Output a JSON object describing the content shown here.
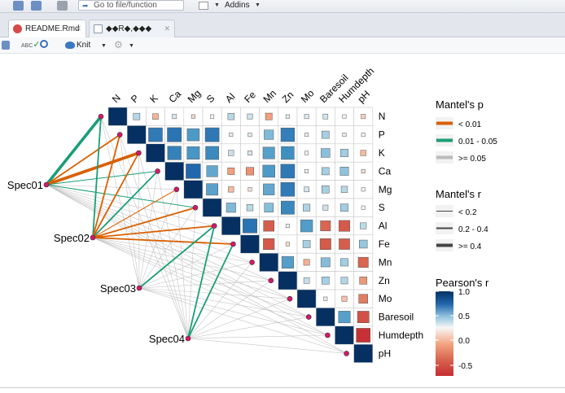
{
  "toolbar": {
    "goto_placeholder": "Go to file/function",
    "addins_label": "Addins",
    "icons": [
      "save-icon",
      "save-all-icon",
      "print-icon",
      "goto-arrow-icon",
      "grid-icon"
    ]
  },
  "tabs": [
    {
      "label": "README.Rmd",
      "active": true,
      "icon": "no-entry-icon"
    },
    {
      "label": "◆◆R◆,◆◆◆",
      "active": false,
      "icon": "document-icon"
    }
  ],
  "editor_toolbar": {
    "spell_label": "ABC",
    "knit_label": "Knit",
    "icons": [
      "save-icon",
      "spellcheck-icon",
      "search-icon",
      "knit-icon",
      "gear-icon"
    ]
  },
  "chart_data": {
    "type": "heatmap",
    "variables": [
      "N",
      "P",
      "K",
      "Ca",
      "Mg",
      "S",
      "Al",
      "Fe",
      "Mn",
      "Zn",
      "Mo",
      "Baresoil",
      "Humdepth",
      "pH"
    ],
    "pearson_r": [
      [
        1.0,
        0.16,
        -0.12,
        0.07,
        -0.05,
        0.0,
        0.15,
        0.1,
        -0.17,
        0.05,
        0.07,
        0.09,
        0.0,
        -0.07
      ],
      [
        0,
        1.0,
        0.71,
        0.74,
        0.55,
        0.72,
        0.04,
        0.05,
        0.33,
        0.69,
        0.03,
        0.2,
        0.04,
        0.0
      ],
      [
        0,
        0,
        1.0,
        0.68,
        0.58,
        0.64,
        0.11,
        0.07,
        0.51,
        0.62,
        0.02,
        0.29,
        0.21,
        -0.11
      ],
      [
        0,
        0,
        0,
        1.0,
        0.79,
        0.46,
        -0.17,
        -0.22,
        0.55,
        0.72,
        0.03,
        0.2,
        0.26,
        -0.05
      ],
      [
        0,
        0,
        0,
        0,
        1.0,
        0.5,
        -0.11,
        -0.04,
        0.46,
        0.71,
        0.09,
        0.2,
        0.15,
        0.0
      ],
      [
        0,
        0,
        0,
        0,
        0,
        1.0,
        0.33,
        0.15,
        0.3,
        0.65,
        0.18,
        0.1,
        0.21,
        0.0
      ],
      [
        0,
        0,
        0,
        0,
        0,
        0,
        1.0,
        0.74,
        -0.42,
        0.03,
        0.54,
        -0.38,
        -0.44,
        0.14
      ],
      [
        0,
        0,
        0,
        0,
        0,
        0,
        0,
        1.0,
        -0.45,
        -0.05,
        0.2,
        -0.44,
        -0.42,
        0.24
      ],
      [
        0,
        0,
        0,
        0,
        0,
        0,
        0,
        0,
        1.0,
        0.52,
        -0.13,
        0.31,
        0.21,
        -0.38
      ],
      [
        0,
        0,
        0,
        0,
        0,
        0,
        0,
        0,
        0,
        1.0,
        0.12,
        0.2,
        0.17,
        -0.2
      ],
      [
        0,
        0,
        0,
        0,
        0,
        0,
        0,
        0,
        0,
        0,
        1.0,
        0.05,
        -0.1,
        -0.3
      ],
      [
        0,
        0,
        0,
        0,
        0,
        0,
        0,
        0,
        0,
        0,
        0,
        1.0,
        0.51,
        -0.5
      ],
      [
        0,
        0,
        0,
        0,
        0,
        0,
        0,
        0,
        0,
        0,
        0,
        0,
        1.0,
        -0.72
      ],
      [
        0,
        0,
        0,
        0,
        0,
        0,
        0,
        0,
        0,
        0,
        0,
        0,
        0,
        1.0
      ]
    ],
    "species": [
      "Spec01",
      "Spec02",
      "Spec03",
      "Spec04"
    ],
    "mantel_links": [
      {
        "spec": "Spec01",
        "var": "N",
        "p": "0.01 - 0.05",
        "r": ">= 0.4"
      },
      {
        "spec": "Spec01",
        "var": "P",
        "p": "< 0.01",
        "r": "0.2 - 0.4"
      },
      {
        "spec": "Spec01",
        "var": "K",
        "p": "< 0.01",
        "r": ">= 0.4"
      },
      {
        "spec": "Spec01",
        "var": "Ca",
        "p": "0.01 - 0.05",
        "r": "< 0.2"
      },
      {
        "spec": "Spec01",
        "var": "Mg",
        "p": ">= 0.05",
        "r": "< 0.2"
      },
      {
        "spec": "Spec01",
        "var": "S",
        "p": "0.01 - 0.05",
        "r": "< 0.2"
      },
      {
        "spec": "Spec01",
        "var": "Al",
        "p": ">= 0.05",
        "r": "< 0.2"
      },
      {
        "spec": "Spec01",
        "var": "Fe",
        "p": ">= 0.05",
        "r": "< 0.2"
      },
      {
        "spec": "Spec01",
        "var": "Mn",
        "p": ">= 0.05",
        "r": "< 0.2"
      },
      {
        "spec": "Spec01",
        "var": "Zn",
        "p": ">= 0.05",
        "r": "< 0.2"
      },
      {
        "spec": "Spec01",
        "var": "Mo",
        "p": ">= 0.05",
        "r": "< 0.2"
      },
      {
        "spec": "Spec01",
        "var": "Baresoil",
        "p": ">= 0.05",
        "r": "< 0.2"
      },
      {
        "spec": "Spec01",
        "var": "Humdepth",
        "p": ">= 0.05",
        "r": "< 0.2"
      },
      {
        "spec": "Spec01",
        "var": "pH",
        "p": ">= 0.05",
        "r": "< 0.2"
      },
      {
        "spec": "Spec02",
        "var": "N",
        "p": "0.01 - 0.05",
        "r": "0.2 - 0.4"
      },
      {
        "spec": "Spec02",
        "var": "P",
        "p": "< 0.01",
        "r": "0.2 - 0.4"
      },
      {
        "spec": "Spec02",
        "var": "K",
        "p": "< 0.01",
        "r": "0.2 - 0.4"
      },
      {
        "spec": "Spec02",
        "var": "Ca",
        "p": "0.01 - 0.05",
        "r": "0.2 - 0.4"
      },
      {
        "spec": "Spec02",
        "var": "Mg",
        "p": "< 0.01",
        "r": "< 0.2"
      },
      {
        "spec": "Spec02",
        "var": "S",
        "p": "< 0.01",
        "r": "0.2 - 0.4"
      },
      {
        "spec": "Spec02",
        "var": "Al",
        "p": "< 0.01",
        "r": "0.2 - 0.4"
      },
      {
        "spec": "Spec02",
        "var": "Fe",
        "p": "< 0.01",
        "r": "0.2 - 0.4"
      },
      {
        "spec": "Spec02",
        "var": "Mn",
        "p": ">= 0.05",
        "r": "< 0.2"
      },
      {
        "spec": "Spec02",
        "var": "Zn",
        "p": ">= 0.05",
        "r": "< 0.2"
      },
      {
        "spec": "Spec02",
        "var": "Mo",
        "p": ">= 0.05",
        "r": "< 0.2"
      },
      {
        "spec": "Spec02",
        "var": "Baresoil",
        "p": ">= 0.05",
        "r": "< 0.2"
      },
      {
        "spec": "Spec02",
        "var": "Humdepth",
        "p": ">= 0.05",
        "r": "< 0.2"
      },
      {
        "spec": "Spec02",
        "var": "pH",
        "p": ">= 0.05",
        "r": "< 0.2"
      },
      {
        "spec": "Spec03",
        "var": "N",
        "p": ">= 0.05",
        "r": "< 0.2"
      },
      {
        "spec": "Spec03",
        "var": "P",
        "p": ">= 0.05",
        "r": "< 0.2"
      },
      {
        "spec": "Spec03",
        "var": "K",
        "p": ">= 0.05",
        "r": "< 0.2"
      },
      {
        "spec": "Spec03",
        "var": "Ca",
        "p": ">= 0.05",
        "r": "< 0.2"
      },
      {
        "spec": "Spec03",
        "var": "Mg",
        "p": ">= 0.05",
        "r": "< 0.2"
      },
      {
        "spec": "Spec03",
        "var": "S",
        "p": ">= 0.05",
        "r": "< 0.2"
      },
      {
        "spec": "Spec03",
        "var": "Al",
        "p": "0.01 - 0.05",
        "r": "0.2 - 0.4"
      },
      {
        "spec": "Spec03",
        "var": "Fe",
        "p": ">= 0.05",
        "r": "< 0.2"
      },
      {
        "spec": "Spec03",
        "var": "Mn",
        "p": ">= 0.05",
        "r": "< 0.2"
      },
      {
        "spec": "Spec03",
        "var": "Zn",
        "p": ">= 0.05",
        "r": "< 0.2"
      },
      {
        "spec": "Spec03",
        "var": "Mo",
        "p": ">= 0.05",
        "r": "< 0.2"
      },
      {
        "spec": "Spec03",
        "var": "Baresoil",
        "p": ">= 0.05",
        "r": "< 0.2"
      },
      {
        "spec": "Spec03",
        "var": "Humdepth",
        "p": ">= 0.05",
        "r": "< 0.2"
      },
      {
        "spec": "Spec03",
        "var": "pH",
        "p": ">= 0.05",
        "r": "< 0.2"
      },
      {
        "spec": "Spec04",
        "var": "N",
        "p": ">= 0.05",
        "r": "< 0.2"
      },
      {
        "spec": "Spec04",
        "var": "P",
        "p": ">= 0.05",
        "r": "< 0.2"
      },
      {
        "spec": "Spec04",
        "var": "K",
        "p": ">= 0.05",
        "r": "< 0.2"
      },
      {
        "spec": "Spec04",
        "var": "Ca",
        "p": ">= 0.05",
        "r": "< 0.2"
      },
      {
        "spec": "Spec04",
        "var": "Mg",
        "p": ">= 0.05",
        "r": "< 0.2"
      },
      {
        "spec": "Spec04",
        "var": "S",
        "p": ">= 0.05",
        "r": "< 0.2"
      },
      {
        "spec": "Spec04",
        "var": "Al",
        "p": "0.01 - 0.05",
        "r": "0.2 - 0.4"
      },
      {
        "spec": "Spec04",
        "var": "Fe",
        "p": "0.01 - 0.05",
        "r": "0.2 - 0.4"
      },
      {
        "spec": "Spec04",
        "var": "Mn",
        "p": ">= 0.05",
        "r": "< 0.2"
      },
      {
        "spec": "Spec04",
        "var": "Zn",
        "p": ">= 0.05",
        "r": "< 0.2"
      },
      {
        "spec": "Spec04",
        "var": "Mo",
        "p": ">= 0.05",
        "r": "< 0.2"
      },
      {
        "spec": "Spec04",
        "var": "Baresoil",
        "p": ">= 0.05",
        "r": "< 0.2"
      },
      {
        "spec": "Spec04",
        "var": "Humdepth",
        "p": ">= 0.05",
        "r": "< 0.2"
      },
      {
        "spec": "Spec04",
        "var": "pH",
        "p": ">= 0.05",
        "r": "< 0.2"
      }
    ],
    "legends": {
      "mantel_p": {
        "title": "Mantel's p",
        "items": [
          {
            "label": "< 0.01",
            "color": "#d95f02"
          },
          {
            "label": "0.01 - 0.05",
            "color": "#1b9e77"
          },
          {
            "label": ">= 0.05",
            "color": "#bbbbbb"
          }
        ]
      },
      "mantel_r": {
        "title": "Mantel's r",
        "items": [
          {
            "label": "< 0.2",
            "width": 1
          },
          {
            "label": "0.2 - 0.4",
            "width": 2
          },
          {
            "label": ">= 0.4",
            "width": 4
          }
        ]
      },
      "pearson": {
        "title": "Pearson's r",
        "ticks": [
          1.0,
          0.5,
          0.0,
          -0.5
        ],
        "range": [
          -0.75,
          1.0
        ]
      }
    }
  }
}
